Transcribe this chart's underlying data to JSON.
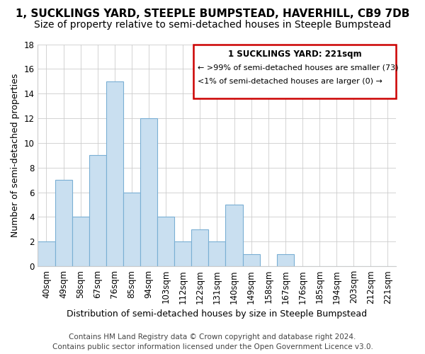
{
  "title": "1, SUCKLINGS YARD, STEEPLE BUMPSTEAD, HAVERHILL, CB9 7DB",
  "subtitle": "Size of property relative to semi-detached houses in Steeple Bumpstead",
  "xlabel": "Distribution of semi-detached houses by size in Steeple Bumpstead",
  "ylabel": "Number of semi-detached properties",
  "footer_line1": "Contains HM Land Registry data © Crown copyright and database right 2024.",
  "footer_line2": "Contains public sector information licensed under the Open Government Licence v3.0.",
  "categories": [
    "40sqm",
    "49sqm",
    "58sqm",
    "67sqm",
    "76sqm",
    "85sqm",
    "94sqm",
    "103sqm",
    "112sqm",
    "122sqm",
    "131sqm",
    "140sqm",
    "149sqm",
    "158sqm",
    "167sqm",
    "176sqm",
    "185sqm",
    "194sqm",
    "203sqm",
    "212sqm",
    "221sqm"
  ],
  "values": [
    2,
    7,
    4,
    9,
    15,
    6,
    12,
    4,
    2,
    3,
    2,
    5,
    1,
    0,
    1,
    0,
    0,
    0,
    0,
    0,
    0
  ],
  "bar_color": "#c9dff0",
  "bar_edge_color": "#7aafd4",
  "ylim": [
    0,
    18
  ],
  "yticks": [
    0,
    2,
    4,
    6,
    8,
    10,
    12,
    14,
    16,
    18
  ],
  "annotation_title": "1 SUCKLINGS YARD: 221sqm",
  "annotation_line1": "← >99% of semi-detached houses are smaller (73)",
  "annotation_line2": "<1% of semi-detached houses are larger (0) →",
  "annotation_border_color": "#cc0000",
  "title_fontsize": 11,
  "subtitle_fontsize": 10,
  "axis_label_fontsize": 9,
  "tick_fontsize": 8.5,
  "footer_fontsize": 7.5
}
